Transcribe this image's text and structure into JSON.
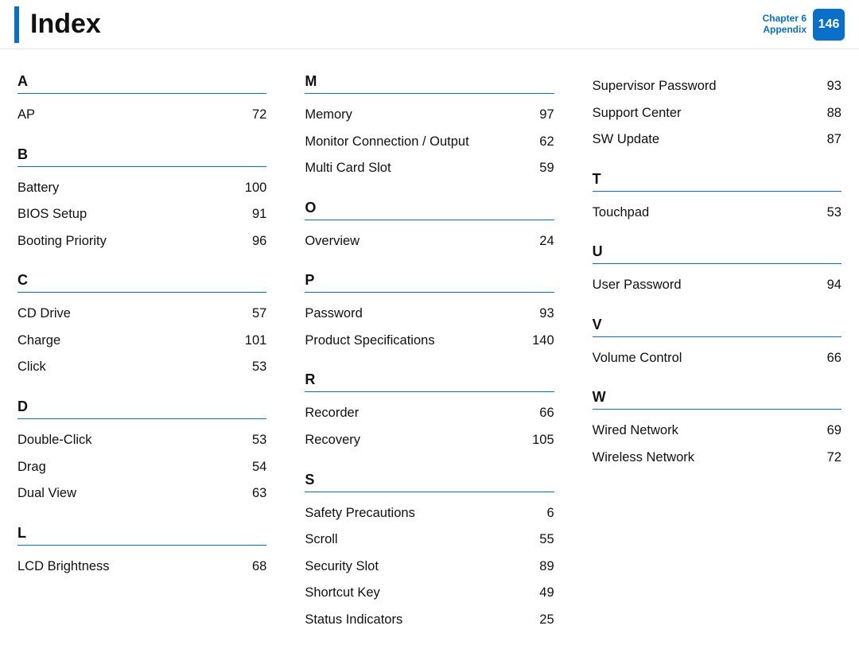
{
  "header": {
    "title": "Index",
    "chapter_line1": "Chapter 6",
    "chapter_line2": "Appendix",
    "page_number": "146",
    "accent_color": "#0a6fc9"
  },
  "sections": [
    {
      "letter": "A",
      "entries": [
        {
          "term": "AP",
          "page": "72"
        }
      ]
    },
    {
      "letter": "B",
      "entries": [
        {
          "term": "Battery",
          "page": "100"
        },
        {
          "term": "BIOS Setup",
          "page": "91"
        },
        {
          "term": "Booting Priority",
          "page": "96"
        }
      ]
    },
    {
      "letter": "C",
      "entries": [
        {
          "term": "CD Drive",
          "page": "57"
        },
        {
          "term": "Charge",
          "page": "101"
        },
        {
          "term": "Click",
          "page": "53"
        }
      ]
    },
    {
      "letter": "D",
      "entries": [
        {
          "term": "Double-Click",
          "page": "53"
        },
        {
          "term": "Drag",
          "page": "54"
        },
        {
          "term": "Dual View",
          "page": "63"
        }
      ]
    },
    {
      "letter": "L",
      "entries": [
        {
          "term": "LCD Brightness",
          "page": "68"
        }
      ]
    },
    {
      "letter": "M",
      "entries": [
        {
          "term": "Memory",
          "page": "97"
        },
        {
          "term": "Monitor Connection / Output",
          "page": "62"
        },
        {
          "term": "Multi Card Slot",
          "page": "59"
        }
      ]
    },
    {
      "letter": "O",
      "entries": [
        {
          "term": "Overview",
          "page": "24"
        }
      ]
    },
    {
      "letter": "P",
      "entries": [
        {
          "term": "Password",
          "page": "93"
        },
        {
          "term": "Product Specifications",
          "page": "140"
        }
      ]
    },
    {
      "letter": "R",
      "entries": [
        {
          "term": "Recorder",
          "page": "66"
        },
        {
          "term": "Recovery",
          "page": "105"
        }
      ]
    },
    {
      "letter": "S",
      "entries": [
        {
          "term": "Safety Precautions",
          "page": "6"
        },
        {
          "term": "Scroll",
          "page": "55"
        },
        {
          "term": "Security Slot",
          "page": "89"
        },
        {
          "term": "Shortcut Key",
          "page": "49"
        },
        {
          "term": "Status Indicators",
          "page": "25"
        },
        {
          "term": "Supervisor Password",
          "page": "93"
        },
        {
          "term": "Support Center",
          "page": "88"
        },
        {
          "term": "SW Update",
          "page": "87"
        }
      ]
    },
    {
      "letter": "T",
      "entries": [
        {
          "term": "Touchpad",
          "page": "53"
        }
      ]
    },
    {
      "letter": "U",
      "entries": [
        {
          "term": "User Password",
          "page": "94"
        }
      ]
    },
    {
      "letter": "V",
      "entries": [
        {
          "term": "Volume Control",
          "page": "66"
        }
      ]
    },
    {
      "letter": "W",
      "entries": [
        {
          "term": "Wired Network",
          "page": "69"
        },
        {
          "term": "Wireless Network",
          "page": "72"
        }
      ]
    }
  ]
}
